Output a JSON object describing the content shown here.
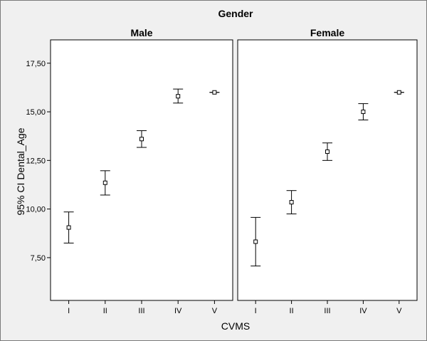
{
  "chart_data": {
    "type": "errorbar",
    "title": "Gender",
    "xlabel": "CVMS",
    "ylabel": "95% CI Dental_Age",
    "categories": [
      "I",
      "II",
      "III",
      "IV",
      "V"
    ],
    "yticks": [
      "7,50",
      "10,00",
      "12,50",
      "15,00",
      "17,50"
    ],
    "ytick_values": [
      7.5,
      10.0,
      12.5,
      15.0,
      17.5
    ],
    "ylim": [
      5.3,
      18.7
    ],
    "grid": false,
    "panels": [
      {
        "name": "Male",
        "mean": [
          9.05,
          11.35,
          13.6,
          15.8,
          16.0
        ],
        "lower": [
          8.25,
          10.72,
          13.17,
          15.45,
          16.0
        ],
        "upper": [
          9.85,
          11.97,
          14.03,
          16.17,
          16.0
        ]
      },
      {
        "name": "Female",
        "mean": [
          8.32,
          10.35,
          12.95,
          15.0,
          16.0
        ],
        "lower": [
          7.07,
          9.75,
          12.5,
          14.58,
          16.0
        ],
        "upper": [
          9.57,
          10.95,
          13.4,
          15.42,
          16.0
        ]
      }
    ]
  }
}
